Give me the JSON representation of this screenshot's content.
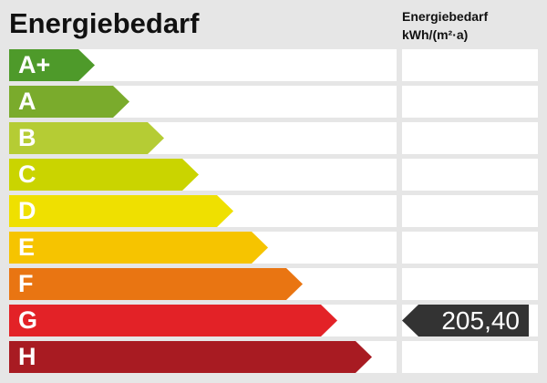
{
  "title": "Energiebedarf",
  "column_header": {
    "line1": "Energiebedarf",
    "line2": "kWh/(m²·a)"
  },
  "classes": [
    {
      "label": "A+",
      "color": "#4e9a2a"
    },
    {
      "label": "A",
      "color": "#7aab2c"
    },
    {
      "label": "B",
      "color": "#b5cc34"
    },
    {
      "label": "C",
      "color": "#cad400"
    },
    {
      "label": "D",
      "color": "#efe000"
    },
    {
      "label": "E",
      "color": "#f6c400"
    },
    {
      "label": "F",
      "color": "#e97512"
    },
    {
      "label": "G",
      "color": "#e32227"
    },
    {
      "label": "H",
      "color": "#a81b22"
    }
  ],
  "value": {
    "text": "205,40",
    "class": "G",
    "color": "#333333"
  }
}
